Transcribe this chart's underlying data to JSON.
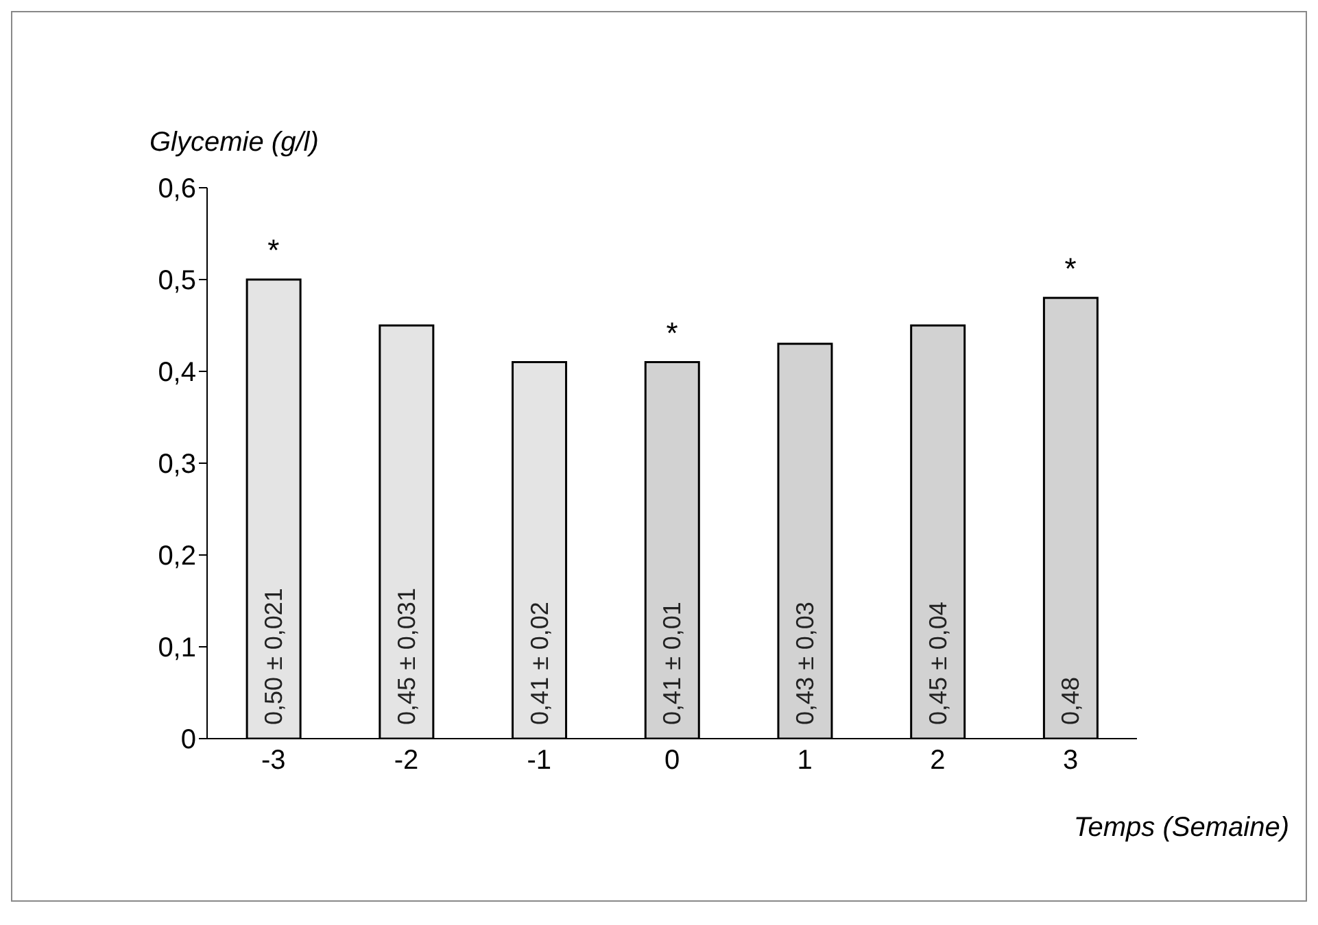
{
  "chart_data": {
    "type": "bar",
    "xlabel": "Temps (Semaine)",
    "ylabel": "Glycemie (g/l)",
    "categories": [
      "-3",
      "-2",
      "-1",
      "0",
      "1",
      "2",
      "3"
    ],
    "values": [
      0.5,
      0.45,
      0.41,
      0.41,
      0.43,
      0.45,
      0.48
    ],
    "colors": [
      "#e4e4e4",
      "#e4e4e4",
      "#e4e4e4",
      "#d2d2d2",
      "#d2d2d2",
      "#d2d2d2",
      "#d2d2d2"
    ],
    "value_labels": [
      "0,50 ± 0,021",
      "0,45 ± 0,031",
      "0,41 ± 0,02",
      "0,41 ± 0,01",
      "0,43 ± 0,03",
      "0,45 ± 0,04",
      "0,48"
    ],
    "ylim": [
      0,
      0.6
    ],
    "yticks": [
      {
        "value": 0,
        "label": "0"
      },
      {
        "value": 0.1,
        "label": "0,1"
      },
      {
        "value": 0.2,
        "label": "0,2"
      },
      {
        "value": 0.3,
        "label": "0,3"
      },
      {
        "value": 0.4,
        "label": "0,4"
      },
      {
        "value": 0.5,
        "label": "0,5"
      },
      {
        "value": 0.6,
        "label": "0,6"
      }
    ],
    "annotations": [
      {
        "text": "*",
        "x": "-3",
        "y": 0.5
      },
      {
        "text": "*",
        "x": "0",
        "y": 0.41
      },
      {
        "text": "*",
        "x": "3",
        "y": 0.48
      }
    ],
    "grid": false,
    "legend": false
  }
}
